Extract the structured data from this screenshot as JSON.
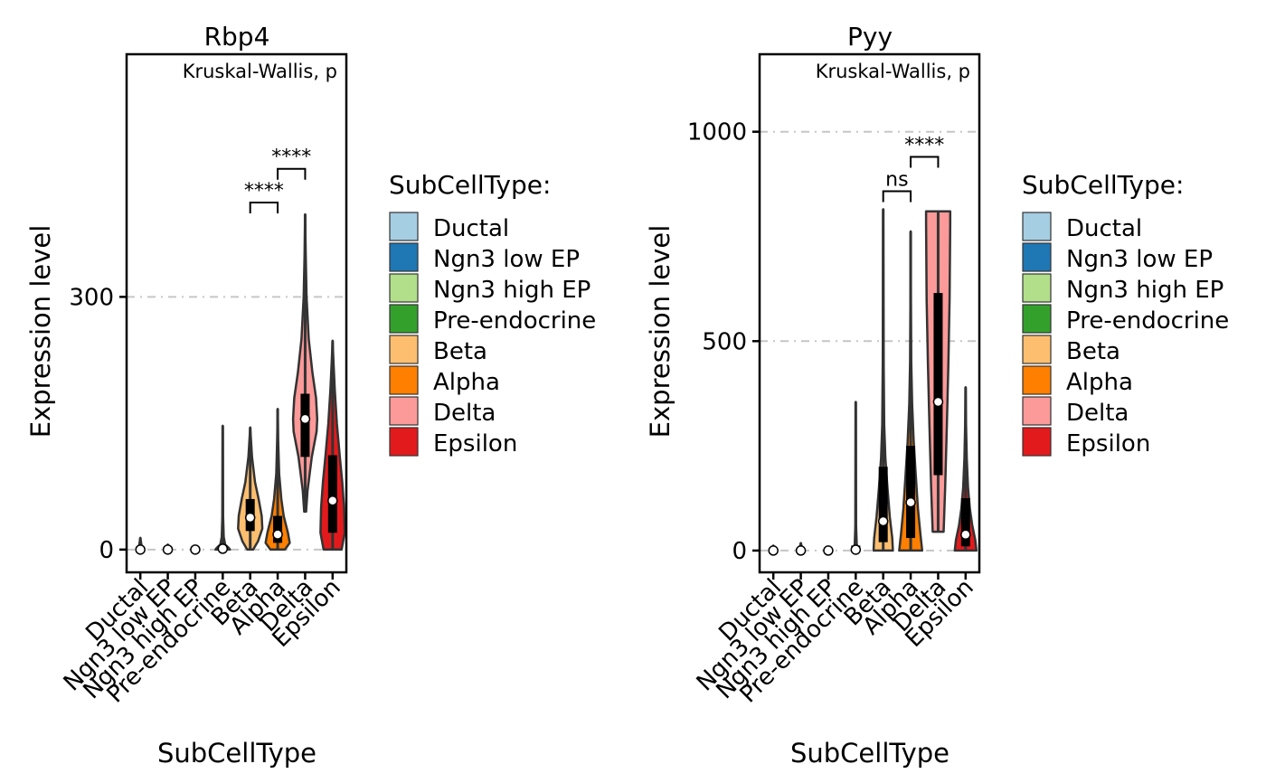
{
  "categories": [
    "Ductal",
    "Ngn3 low EP",
    "Ngn3 high EP",
    "Pre-endocrine",
    "Beta",
    "Alpha",
    "Delta",
    "Epsilon"
  ],
  "colors": [
    "#a6cee3",
    "#1f78b4",
    "#b2df8a",
    "#33a02c",
    "#fdbf6f",
    "#ff7f00",
    "#fb9a99",
    "#e31a1c"
  ],
  "legend": {
    "title": "SubCellType:",
    "labels": [
      "Ductal",
      "Ngn3 low EP",
      "Ngn3 high EP",
      "Pre-endocrine",
      "Beta",
      "Alpha",
      "Delta",
      "Epsilon"
    ]
  },
  "chart_data": [
    {
      "type": "violin",
      "title": "Rbp4",
      "subtitle": "Kruskal-Wallis, p",
      "xlabel": "SubCellType",
      "ylabel": "Expression level",
      "ylim": [
        -27,
        588
      ],
      "yticks": [
        0,
        300
      ],
      "reference_lines": [
        300
      ],
      "grid": false,
      "legend_position": "right",
      "categories": [
        "Ductal",
        "Ngn3 low EP",
        "Ngn3 high EP",
        "Pre-endocrine",
        "Beta",
        "Alpha",
        "Delta",
        "Epsilon"
      ],
      "violins": [
        {
          "category": "Ductal",
          "min": 0,
          "max": 14,
          "median": 0,
          "q1": 0,
          "q3": 0,
          "profile": [
            [
              0,
              0.15
            ],
            [
              14,
              0
            ]
          ]
        },
        {
          "category": "Ngn3 low EP",
          "min": 0,
          "max": 6,
          "median": 0,
          "q1": 0,
          "q3": 0,
          "profile": [
            [
              0,
              0.15
            ],
            [
              6,
              0
            ]
          ]
        },
        {
          "category": "Ngn3 high EP",
          "min": 0,
          "max": 2,
          "median": 0,
          "q1": 0,
          "q3": 0,
          "profile": [
            [
              0,
              0.1
            ],
            [
              2,
              0
            ]
          ]
        },
        {
          "category": "Pre-endocrine",
          "min": 0,
          "max": 147,
          "median": 1,
          "q1": 0,
          "q3": 5,
          "profile": [
            [
              0,
              0.6
            ],
            [
              2,
              0.5
            ],
            [
              6,
              0.2
            ],
            [
              15,
              0.08
            ],
            [
              40,
              0.03
            ],
            [
              147,
              0
            ]
          ]
        },
        {
          "category": "Beta",
          "min": 0,
          "max": 145,
          "median": 38,
          "q1": 22,
          "q3": 60,
          "profile": [
            [
              0,
              0.25
            ],
            [
              10,
              0.65
            ],
            [
              25,
              1.0
            ],
            [
              40,
              0.95
            ],
            [
              60,
              0.7
            ],
            [
              80,
              0.4
            ],
            [
              110,
              0.15
            ],
            [
              145,
              0
            ]
          ]
        },
        {
          "category": "Alpha",
          "min": 0,
          "max": 167,
          "median": 18,
          "q1": 8,
          "q3": 40,
          "profile": [
            [
              0,
              0.6
            ],
            [
              8,
              1.0
            ],
            [
              20,
              0.85
            ],
            [
              40,
              0.5
            ],
            [
              60,
              0.3
            ],
            [
              90,
              0.12
            ],
            [
              130,
              0.04
            ],
            [
              167,
              0
            ]
          ]
        },
        {
          "category": "Delta",
          "min": 45,
          "max": 398,
          "median": 155,
          "q1": 110,
          "q3": 185,
          "profile": [
            [
              45,
              0.08
            ],
            [
              70,
              0.2
            ],
            [
              110,
              0.55
            ],
            [
              140,
              0.95
            ],
            [
              155,
              1.0
            ],
            [
              180,
              0.9
            ],
            [
              210,
              0.6
            ],
            [
              250,
              0.3
            ],
            [
              300,
              0.12
            ],
            [
              350,
              0.05
            ],
            [
              398,
              0
            ]
          ]
        },
        {
          "category": "Epsilon",
          "min": 0,
          "max": 248,
          "median": 58,
          "q1": 20,
          "q3": 112,
          "profile": [
            [
              0,
              0.75
            ],
            [
              20,
              1.0
            ],
            [
              50,
              0.95
            ],
            [
              80,
              0.8
            ],
            [
              110,
              0.6
            ],
            [
              150,
              0.35
            ],
            [
              190,
              0.18
            ],
            [
              220,
              0.08
            ],
            [
              248,
              0
            ]
          ]
        }
      ],
      "comparisons": [
        {
          "groups": [
            "Beta",
            "Alpha"
          ],
          "y": 412,
          "label": "****"
        },
        {
          "groups": [
            "Alpha",
            "Delta"
          ],
          "y": 452,
          "label": "****"
        }
      ]
    },
    {
      "type": "violin",
      "title": "Pyy",
      "subtitle": "Kruskal-Wallis, p",
      "xlabel": "SubCellType",
      "ylabel": "Expression level",
      "ylim": [
        -52,
        1185
      ],
      "yticks": [
        0,
        500,
        1000
      ],
      "reference_lines": [
        500,
        1000
      ],
      "grid": false,
      "legend_position": "right",
      "categories": [
        "Ductal",
        "Ngn3 low EP",
        "Ngn3 high EP",
        "Pre-endocrine",
        "Beta",
        "Alpha",
        "Delta",
        "Epsilon"
      ],
      "violins": [
        {
          "category": "Ductal",
          "min": 0,
          "max": 12,
          "median": 0,
          "q1": 0,
          "q3": 0,
          "profile": [
            [
              0,
              0.15
            ],
            [
              12,
              0
            ]
          ]
        },
        {
          "category": "Ngn3 low EP",
          "min": 0,
          "max": 18,
          "median": 0,
          "q1": 0,
          "q3": 0,
          "profile": [
            [
              0,
              0.15
            ],
            [
              18,
              0
            ]
          ]
        },
        {
          "category": "Ngn3 high EP",
          "min": 0,
          "max": 4,
          "median": 0,
          "q1": 0,
          "q3": 0,
          "profile": [
            [
              0,
              0.1
            ],
            [
              4,
              0
            ]
          ]
        },
        {
          "category": "Pre-endocrine",
          "min": 0,
          "max": 355,
          "median": 2,
          "q1": 0,
          "q3": 12,
          "profile": [
            [
              0,
              0.3
            ],
            [
              5,
              0.22
            ],
            [
              15,
              0.08
            ],
            [
              60,
              0.03
            ],
            [
              355,
              0
            ]
          ]
        },
        {
          "category": "Beta",
          "min": 0,
          "max": 815,
          "median": 70,
          "q1": 20,
          "q3": 200,
          "profile": [
            [
              0,
              0.8
            ],
            [
              30,
              0.75
            ],
            [
              80,
              0.55
            ],
            [
              150,
              0.35
            ],
            [
              220,
              0.18
            ],
            [
              300,
              0.08
            ],
            [
              450,
              0.04
            ],
            [
              600,
              0.02
            ],
            [
              815,
              0
            ]
          ]
        },
        {
          "category": "Alpha",
          "min": 0,
          "max": 762,
          "median": 115,
          "q1": 30,
          "q3": 250,
          "profile": [
            [
              0,
              0.95
            ],
            [
              40,
              0.8
            ],
            [
              100,
              0.6
            ],
            [
              180,
              0.42
            ],
            [
              260,
              0.25
            ],
            [
              350,
              0.12
            ],
            [
              450,
              0.05
            ],
            [
              600,
              0.02
            ],
            [
              762,
              0
            ]
          ]
        },
        {
          "category": "Delta",
          "min": 45,
          "max": 810,
          "median": 355,
          "q1": 180,
          "q3": 615,
          "profile": [
            [
              45,
              0.45
            ],
            [
              150,
              0.58
            ],
            [
              300,
              0.72
            ],
            [
              450,
              0.85
            ],
            [
              600,
              0.95
            ],
            [
              780,
              1.0
            ],
            [
              810,
              1.0
            ]
          ]
        },
        {
          "category": "Epsilon",
          "min": 0,
          "max": 390,
          "median": 38,
          "q1": 10,
          "q3": 125,
          "profile": [
            [
              0,
              0.9
            ],
            [
              25,
              0.8
            ],
            [
              60,
              0.55
            ],
            [
              100,
              0.35
            ],
            [
              150,
              0.2
            ],
            [
              220,
              0.1
            ],
            [
              300,
              0.04
            ],
            [
              390,
              0
            ]
          ]
        }
      ],
      "comparisons": [
        {
          "groups": [
            "Beta",
            "Alpha"
          ],
          "y": 858,
          "label": "ns"
        },
        {
          "groups": [
            "Alpha",
            "Delta"
          ],
          "y": 940,
          "label": "****"
        }
      ]
    }
  ]
}
